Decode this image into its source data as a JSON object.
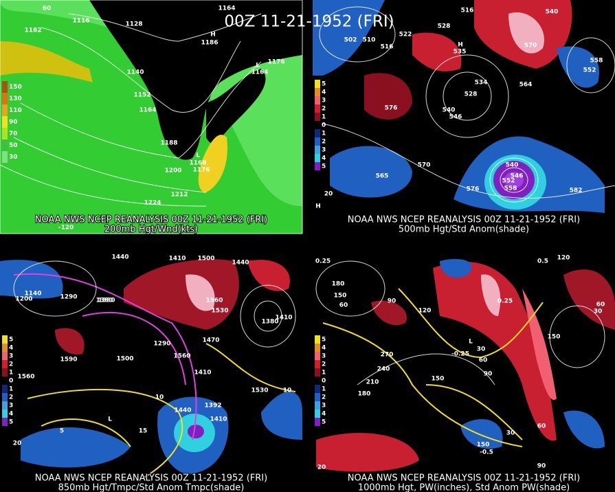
{
  "title": "00Z 11-21-1952 (FRI)",
  "panels": [
    {
      "source": "NOAA NWS NCEP REANALYSIS 00Z 11-21-1952 (FRI)",
      "caption": "200mb Hgt/Wnd(kts)",
      "legend": [
        "150",
        "130",
        "110",
        "90",
        "70",
        "50",
        "30"
      ],
      "labels": [
        "60",
        "1164",
        "1116",
        "1128",
        "1182",
        "1186",
        "H",
        "1140",
        "1176",
        "1164",
        "L",
        "1152",
        "1164",
        "1188",
        "L",
        "1168",
        "1176",
        "1200",
        "1212",
        "1224",
        "-120"
      ]
    },
    {
      "source": "NOAA NWS NCEP REANALYSIS 00Z 11-21-1952 (FRI)",
      "caption": "500mb Hgt/Std Anom(shade)",
      "legend": [
        "5",
        "4",
        "3",
        "2",
        "1",
        "0",
        "1",
        "2",
        "3",
        "4",
        "5"
      ],
      "labels": [
        "516",
        "540",
        "502",
        "510",
        "516",
        "522",
        "528",
        "535",
        "570",
        "552",
        "558",
        "H",
        "534",
        "564",
        "528",
        "540",
        "546",
        "576",
        "570",
        "565",
        "576",
        "540",
        "546",
        "552",
        "558",
        "582",
        "20",
        "H"
      ]
    },
    {
      "source": "NOAA NWS NCEP REANALYSIS 00Z 11-21-1952 (FRI)",
      "caption": "850mb Hgt/Tmpc/Std Anom Tmpc(shade)",
      "legend": [
        "5",
        "4",
        "3",
        "2",
        "1",
        "0",
        "1",
        "2",
        "3",
        "4",
        "5"
      ],
      "labels": [
        "1440",
        "1410",
        "1500",
        "1440",
        "1380",
        "1140",
        "1200",
        "1290",
        "1380",
        "1560",
        "1530",
        "1380",
        "1410",
        "1470",
        "1290",
        "1500",
        "1590",
        "1560",
        "1410",
        "1560",
        "1530",
        "10",
        "10",
        "1440",
        "1392",
        "1410",
        "5",
        "15",
        "20",
        "L"
      ]
    },
    {
      "source": "NOAA NWS NCEP REANALYSIS 00Z 11-21-1952 (FRI)",
      "caption": "1000mb Hgt, PW(inches), Std Anom PW(shade)",
      "legend": [
        "5",
        "4",
        "3",
        "2",
        "1",
        "0",
        "1",
        "2",
        "3",
        "4",
        "5"
      ],
      "labels": [
        "0.25",
        "120",
        "0.5",
        "180",
        "150",
        "60",
        "90",
        "120",
        "0.25",
        "30",
        "60",
        "150",
        "270",
        "240",
        "-0.25",
        "30",
        "60",
        "90",
        "210",
        "180",
        "150",
        "30",
        "60",
        "150",
        "-0.5",
        "90",
        "20",
        "L"
      ]
    }
  ]
}
